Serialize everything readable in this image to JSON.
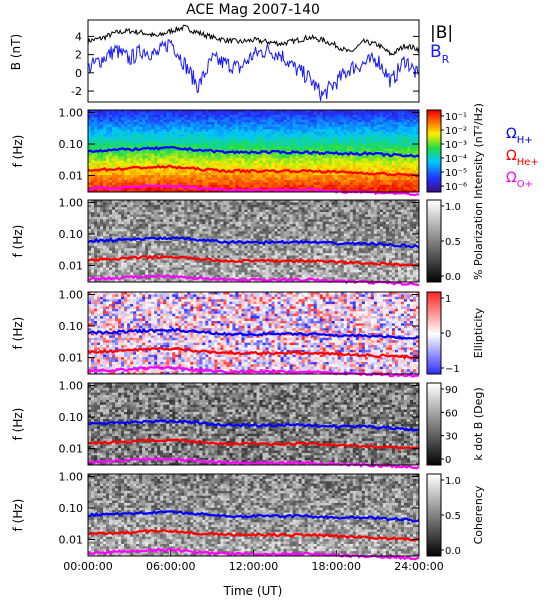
{
  "title": "ACE Mag 2007-140",
  "time_axis": {
    "label": "Time (UT)",
    "ticks": [
      "00:00:00",
      "06:00:00",
      "12:00:00",
      "18:00:00",
      "24:00:00"
    ],
    "tick_hours": [
      0,
      6,
      12,
      18,
      24
    ]
  },
  "colors": {
    "b_total": "#000000",
    "b_r": "#1a1aff",
    "omega_h": "#0000ff",
    "omega_he": "#ff0000",
    "omega_o": "#ff00ff"
  },
  "chart_data": [
    {
      "type": "line",
      "panel": "magnetic field",
      "ylabel": "B (nT)",
      "ylim": [
        -3.2,
        5.8
      ],
      "yticks": [
        "4",
        "2",
        "0",
        "-2"
      ],
      "ytick_values": [
        4,
        2,
        0,
        -2
      ],
      "legend": [
        "|B|",
        "B",
        "R"
      ],
      "series": [
        {
          "name": "|B|",
          "x_hours": [
            0,
            1,
            2,
            3,
            4,
            5,
            6,
            7,
            8,
            9,
            10,
            11,
            12,
            13,
            14,
            15,
            16,
            17,
            18,
            19,
            20,
            21,
            22,
            23,
            24
          ],
          "values": [
            3.5,
            3.8,
            4.4,
            4.6,
            4.4,
            4.0,
            4.6,
            5.0,
            4.4,
            3.9,
            3.6,
            3.4,
            3.6,
            3.4,
            3.2,
            3.5,
            3.9,
            3.6,
            3.0,
            2.2,
            3.4,
            3.1,
            2.0,
            3.0,
            2.6
          ]
        },
        {
          "name": "BR",
          "x_hours": [
            0,
            1,
            2,
            3,
            4,
            5,
            6,
            7,
            8,
            9,
            10,
            11,
            12,
            13,
            14,
            15,
            16,
            17,
            18,
            19,
            20,
            21,
            22,
            23,
            24
          ],
          "values": [
            0.5,
            1.5,
            2.5,
            1.5,
            2.5,
            2.0,
            3.5,
            1.0,
            -1.5,
            1.5,
            1.0,
            0.5,
            2.0,
            2.5,
            2.0,
            0.5,
            -0.5,
            -2.5,
            -1.0,
            0.5,
            1.0,
            1.5,
            -1.0,
            1.5,
            -0.5
          ]
        }
      ]
    },
    {
      "type": "heatmap",
      "panel": "power spectrum",
      "ylabel": "f (Hz)",
      "yscale": "log",
      "ylim": [
        0.003,
        1.2
      ],
      "yticks": [
        "1.00",
        "0.10",
        "0.01"
      ],
      "ytick_values": [
        1,
        0.1,
        0.01
      ],
      "colorbar_label": "Intensity (nT²/Hz)",
      "colorbar_ticks": [
        "10⁻¹",
        "10⁻²",
        "10⁻³",
        "10⁻⁴",
        "10⁻⁵",
        "10⁻⁶"
      ],
      "legend": [
        "ΩH+",
        "ΩHe+",
        "ΩO+"
      ]
    },
    {
      "type": "heatmap",
      "panel": "polarization",
      "ylabel": "f (Hz)",
      "yscale": "log",
      "yticks": [
        "1.00",
        "0.10",
        "0.01"
      ],
      "colorbar_label": "% Polarization",
      "colorbar_ticks": [
        "1.0",
        "0.5",
        "0.0"
      ]
    },
    {
      "type": "heatmap",
      "panel": "ellipticity",
      "ylabel": "f (Hz)",
      "yscale": "log",
      "yticks": [
        "1.00",
        "0.10",
        "0.01"
      ],
      "colorbar_label": "Ellipticity",
      "colorbar_ticks": [
        "1",
        "0",
        "−1"
      ]
    },
    {
      "type": "heatmap",
      "panel": "wave normal angle",
      "ylabel": "f (Hz)",
      "yscale": "log",
      "yticks": [
        "1.00",
        "0.10",
        "0.01"
      ],
      "colorbar_label": "k dot B (Deg)",
      "colorbar_ticks": [
        "90",
        "60",
        "30",
        "0"
      ]
    },
    {
      "type": "heatmap",
      "panel": "coherency",
      "ylabel": "f (Hz)",
      "yscale": "log",
      "yticks": [
        "1.00",
        "0.10",
        "0.01"
      ],
      "colorbar_label": "Coherency",
      "colorbar_ticks": [
        "1.0",
        "0.5",
        "0.0"
      ]
    }
  ],
  "gyrofrequencies": {
    "x_hours": [
      0,
      2,
      4,
      6,
      8,
      10,
      12,
      14,
      16,
      18,
      20,
      22,
      24
    ],
    "omega_h_hz": [
      0.06,
      0.065,
      0.07,
      0.075,
      0.065,
      0.055,
      0.055,
      0.055,
      0.055,
      0.05,
      0.05,
      0.045,
      0.04
    ],
    "omega_he_hz": [
      0.015,
      0.016,
      0.018,
      0.019,
      0.016,
      0.014,
      0.014,
      0.014,
      0.014,
      0.013,
      0.012,
      0.011,
      0.01
    ],
    "omega_o_hz": [
      0.0038,
      0.004,
      0.0045,
      0.0047,
      0.004,
      0.0035,
      0.0035,
      0.0035,
      0.0035,
      0.0032,
      0.003,
      0.0028,
      0.0025
    ]
  }
}
